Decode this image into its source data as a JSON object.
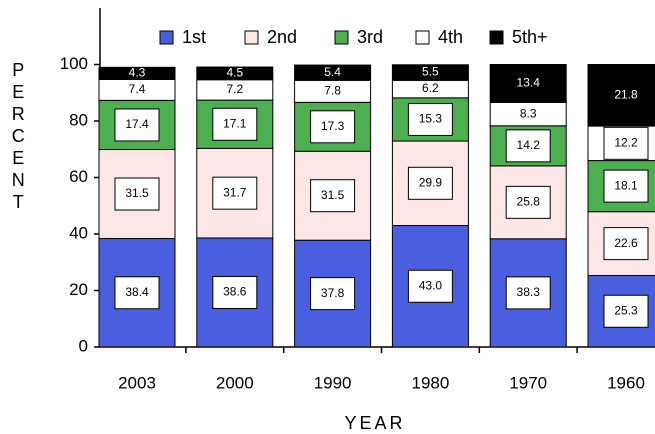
{
  "chart_data": {
    "type": "bar",
    "stacked": true,
    "x_label": "YEAR",
    "y_label": "PERCENT",
    "categories": [
      "2003",
      "2000",
      "1990",
      "1980",
      "1970",
      "1960"
    ],
    "series": [
      {
        "name": "1st",
        "color": "#4a5fe0",
        "values": [
          38.4,
          38.6,
          37.8,
          43.0,
          38.3,
          25.3
        ],
        "value_labels": [
          "38.4",
          "38.6",
          "37.8",
          "43.0",
          "38.3",
          "25.3"
        ]
      },
      {
        "name": "2nd",
        "color": "#fde6e6",
        "values": [
          31.5,
          31.7,
          31.5,
          29.9,
          25.8,
          22.6
        ]
      },
      {
        "name": "3rd",
        "color": "#4caf50",
        "values": [
          17.4,
          17.1,
          17.3,
          15.3,
          14.2,
          18.1
        ]
      },
      {
        "name": "4th",
        "color": "#ffffff",
        "values": [
          7.4,
          7.2,
          7.8,
          6.2,
          8.3,
          12.2
        ]
      },
      {
        "name": "5th+",
        "color": "#000000",
        "values": [
          4.3,
          4.5,
          5.4,
          5.5,
          13.4,
          21.8
        ]
      }
    ],
    "ylim": [
      0,
      120
    ],
    "yticks": [
      0,
      20,
      40,
      60,
      80,
      100
    ],
    "legend": "top"
  }
}
